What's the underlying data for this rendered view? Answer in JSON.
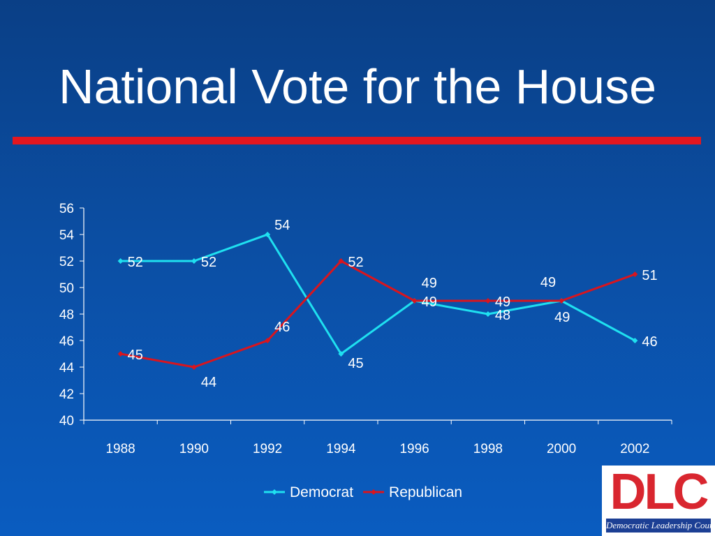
{
  "slide": {
    "title": "National Vote for the House"
  },
  "logo": {
    "letters": "DLC",
    "caption": "Democratic Leadership Council"
  },
  "colors": {
    "background": "#0b4ea3",
    "title_rule": "#e3171f",
    "democrat": "#1fe0f0",
    "republican": "#d9151e",
    "text": "#ffffff",
    "logo_red": "#d9262f",
    "logo_blue": "#1c3f94"
  },
  "chart_data": {
    "type": "line",
    "title": "",
    "xlabel": "",
    "ylabel": "",
    "categories": [
      "1988",
      "1990",
      "1992",
      "1994",
      "1996",
      "1998",
      "2000",
      "2002"
    ],
    "ylim": [
      40,
      56
    ],
    "yticks": [
      40,
      42,
      44,
      46,
      48,
      50,
      52,
      54,
      56
    ],
    "grid": false,
    "legend": "bottom",
    "series": [
      {
        "name": "Democrat",
        "values": [
          52,
          52,
          54,
          45,
          49,
          48,
          49,
          46
        ]
      },
      {
        "name": "Republican",
        "values": [
          45,
          44,
          46,
          52,
          49,
          49,
          49,
          51
        ]
      }
    ]
  }
}
